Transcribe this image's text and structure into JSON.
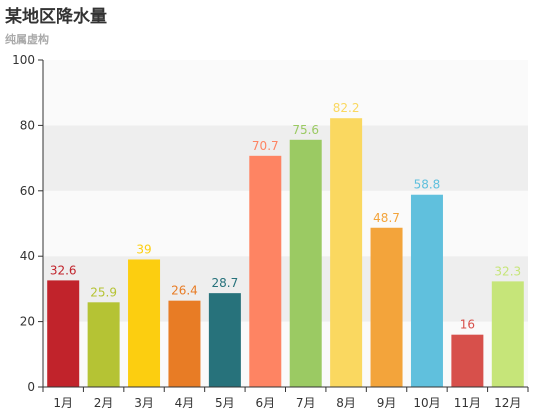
{
  "chart_data": {
    "type": "bar",
    "title": "某地区降水量",
    "subtitle": "纯属虚构",
    "categories": [
      "1月",
      "2月",
      "3月",
      "4月",
      "5月",
      "6月",
      "7月",
      "8月",
      "9月",
      "10月",
      "11月",
      "12月"
    ],
    "values": [
      32.6,
      25.9,
      39,
      26.4,
      28.7,
      70.7,
      75.6,
      82.2,
      48.7,
      58.8,
      16,
      32.3
    ],
    "colors": [
      "#c1232b",
      "#b5c334",
      "#fcce10",
      "#e87c25",
      "#27727b",
      "#fe8463",
      "#9bca63",
      "#fad860",
      "#f3a43b",
      "#60c0dd",
      "#d7504b",
      "#c6e579"
    ],
    "ylim": [
      0,
      100
    ],
    "yticks": [
      0,
      20,
      40,
      60,
      80,
      100
    ],
    "xlabel": "",
    "ylabel": "",
    "grid": "alternating horizontal bands",
    "legend": "none"
  }
}
